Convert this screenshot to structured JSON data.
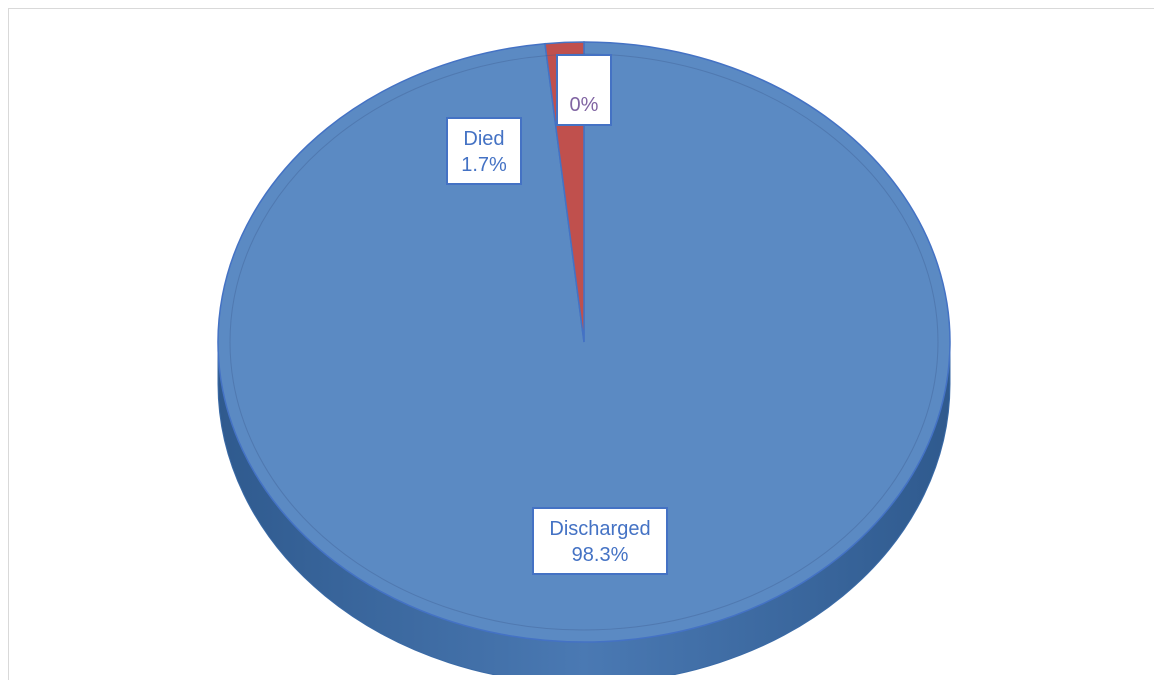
{
  "chart_data": {
    "type": "pie",
    "three_d": true,
    "slices": [
      {
        "label": "Discharged",
        "value": 98.3,
        "display": "98.3%",
        "color": "#5b8ac3"
      },
      {
        "label": "Died",
        "value": 1.7,
        "display": "1.7%",
        "color": "#c0504d"
      },
      {
        "label": "",
        "value": 0,
        "display": "0%",
        "color": "#8064a2"
      }
    ],
    "legend": "none"
  }
}
